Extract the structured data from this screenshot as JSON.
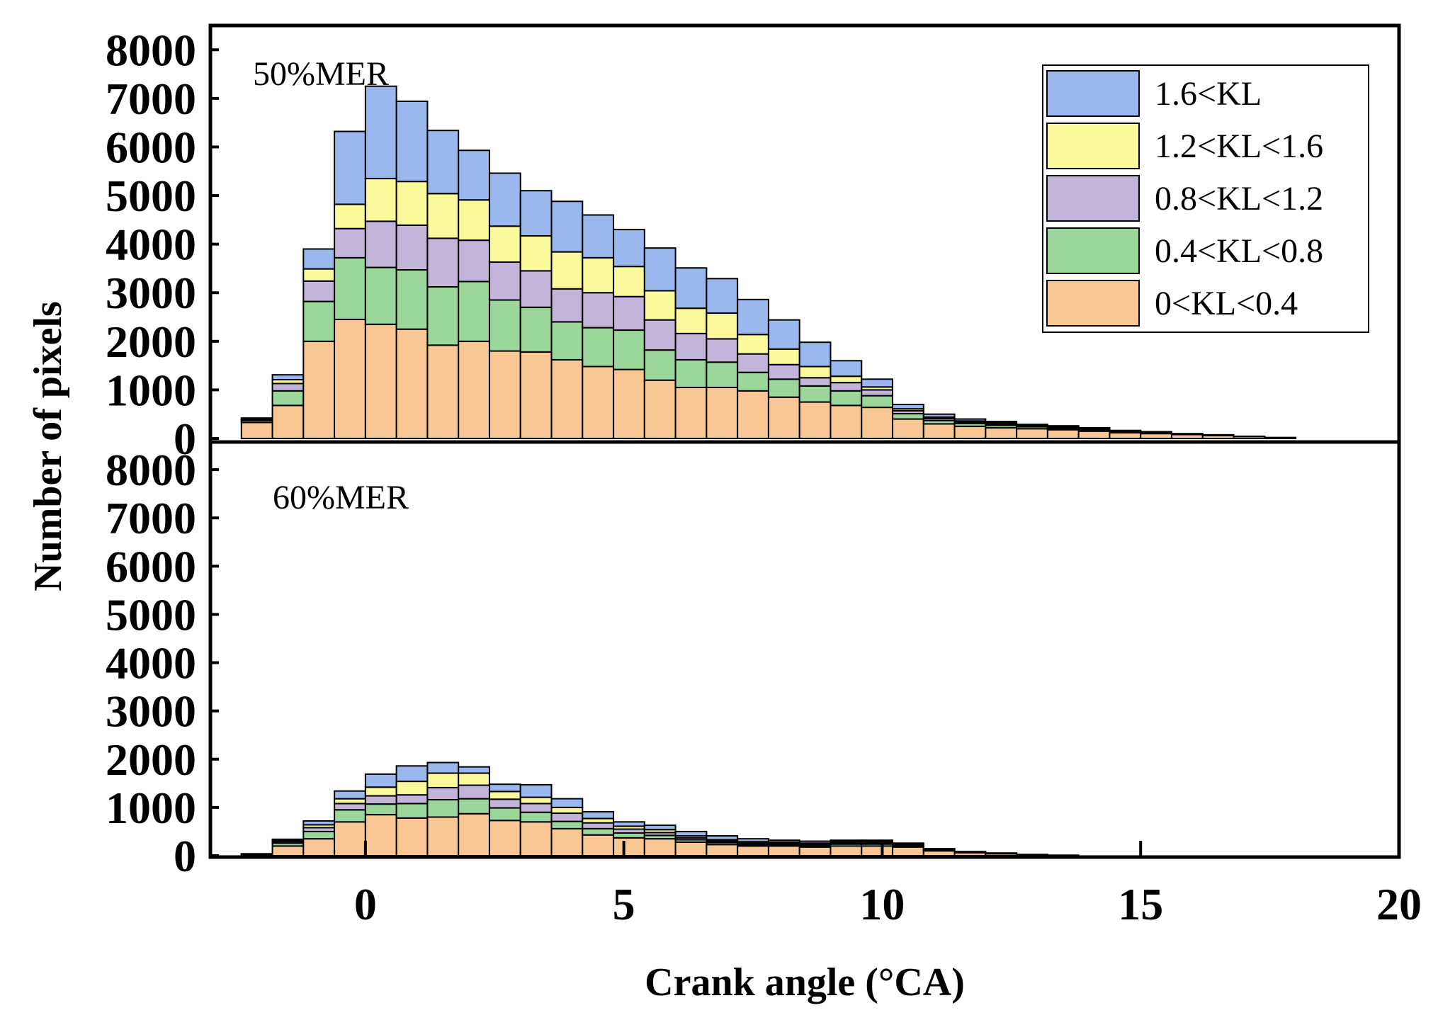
{
  "chart_data": {
    "type": "bar",
    "stacked": true,
    "xlabel": "Crank angle (°CA)",
    "ylabel": "Number of pixels",
    "xlim": [
      -3,
      20
    ],
    "ylim": [
      0,
      8500
    ],
    "xticks": [
      "0",
      "5",
      "10",
      "15",
      "20"
    ],
    "yticks": [
      "0",
      "1000",
      "2000",
      "3000",
      "4000",
      "5000",
      "6000",
      "7000",
      "8000"
    ],
    "bin_width": 0.6,
    "legend": [
      "1.6<KL",
      "1.2<KL<1.6",
      "0.8<KL<1.2",
      "0.4<KL<0.8",
      "0<KL<0.4"
    ],
    "series_colors": {
      "0<KL<0.4": "#F9C793",
      "0.4<KL<0.8": "#9BD79A",
      "0.8<KL<1.2": "#C3B4DA",
      "1.2<KL<1.6": "#FAFA9C",
      "1.6<KL": "#9AB7EE"
    },
    "panels": [
      {
        "label": "50%MER",
        "x": [
          -2.1,
          -1.5,
          -0.9,
          -0.3,
          0.3,
          0.9,
          1.5,
          2.1,
          2.7,
          3.3,
          3.9,
          4.5,
          5.1,
          5.7,
          6.3,
          6.9,
          7.5,
          8.1,
          8.7,
          9.3,
          9.9,
          10.5,
          11.1,
          11.7,
          12.3,
          12.9,
          13.5,
          14.1,
          14.7,
          15.3,
          15.9,
          16.5,
          17.1,
          17.7
        ],
        "series": [
          {
            "name": "0<KL<0.4",
            "values": [
              330,
              680,
              2000,
              2450,
              2350,
              2250,
              1920,
              2000,
              1800,
              1780,
              1620,
              1480,
              1420,
              1200,
              1050,
              1050,
              980,
              850,
              750,
              680,
              640,
              400,
              300,
              250,
              220,
              200,
              180,
              150,
              120,
              100,
              80,
              60,
              40,
              20
            ]
          },
          {
            "name": "0.4<KL<0.8",
            "values": [
              40,
              300,
              820,
              1270,
              1170,
              1220,
              1200,
              1230,
              1050,
              920,
              780,
              800,
              810,
              620,
              570,
              520,
              380,
              370,
              330,
              300,
              240,
              110,
              70,
              60,
              50,
              40,
              30,
              30,
              20,
              20,
              10,
              10,
              5,
              0
            ]
          },
          {
            "name": "0.8<KL<1.2",
            "values": [
              20,
              150,
              420,
              600,
              950,
              920,
              1000,
              850,
              780,
              750,
              680,
              720,
              690,
              620,
              540,
              480,
              380,
              300,
              170,
              170,
              120,
              60,
              40,
              30,
              30,
              20,
              20,
              10,
              10,
              10,
              5,
              5,
              0,
              0
            ]
          },
          {
            "name": "1.2<KL<1.6",
            "values": [
              10,
              80,
              250,
              500,
              880,
              900,
              920,
              830,
              740,
              720,
              760,
              720,
              620,
              600,
              520,
              530,
              400,
              320,
              230,
              130,
              60,
              40,
              30,
              20,
              20,
              10,
              10,
              10,
              5,
              5,
              0,
              0,
              0,
              0
            ]
          },
          {
            "name": "1.6<KL",
            "values": [
              20,
              100,
              410,
              1500,
              1900,
              1650,
              1300,
              1020,
              1090,
              930,
              1040,
              880,
              760,
              880,
              830,
              710,
              720,
              600,
              500,
              320,
              160,
              90,
              60,
              40,
              30,
              20,
              20,
              20,
              10,
              5,
              5,
              0,
              0,
              0
            ]
          }
        ]
      },
      {
        "label": "60%MER",
        "x": [
          -2.1,
          -1.5,
          -0.9,
          -0.3,
          0.3,
          0.9,
          1.5,
          2.1,
          2.7,
          3.3,
          3.9,
          4.5,
          5.1,
          5.7,
          6.3,
          6.9,
          7.5,
          8.1,
          8.7,
          9.3,
          9.9,
          10.5,
          11.1,
          11.7,
          12.3,
          12.9,
          13.5
        ],
        "series": [
          {
            "name": "0<KL<0.4",
            "values": [
              20,
              200,
              350,
              700,
              850,
              780,
              800,
              870,
              730,
              700,
              560,
              430,
              370,
              350,
              280,
              230,
              200,
              200,
              180,
              200,
              200,
              180,
              100,
              60,
              40,
              20,
              10
            ]
          },
          {
            "name": "0.4<KL<0.8",
            "values": [
              5,
              60,
              150,
              250,
              220,
              300,
              360,
              310,
              260,
              200,
              150,
              130,
              100,
              70,
              50,
              40,
              30,
              30,
              30,
              40,
              40,
              30,
              20,
              10,
              5,
              5,
              0
            ]
          },
          {
            "name": "0.8<KL<1.2",
            "values": [
              5,
              30,
              80,
              130,
              170,
              180,
              250,
              280,
              180,
              180,
              170,
              120,
              80,
              60,
              40,
              30,
              30,
              30,
              30,
              30,
              30,
              20,
              10,
              5,
              5,
              0,
              0
            ]
          },
          {
            "name": "1.2<KL<1.6",
            "values": [
              5,
              20,
              60,
              100,
              180,
              280,
              300,
              250,
              160,
              130,
              120,
              90,
              60,
              60,
              40,
              30,
              30,
              20,
              20,
              20,
              20,
              10,
              5,
              5,
              0,
              0,
              0
            ]
          },
          {
            "name": "1.6<KL",
            "values": [
              5,
              30,
              80,
              160,
              270,
              320,
              220,
              130,
              150,
              260,
              180,
              140,
              90,
              90,
              90,
              80,
              60,
              40,
              40,
              30,
              30,
              20,
              10,
              5,
              5,
              0,
              0
            ]
          }
        ]
      }
    ]
  }
}
